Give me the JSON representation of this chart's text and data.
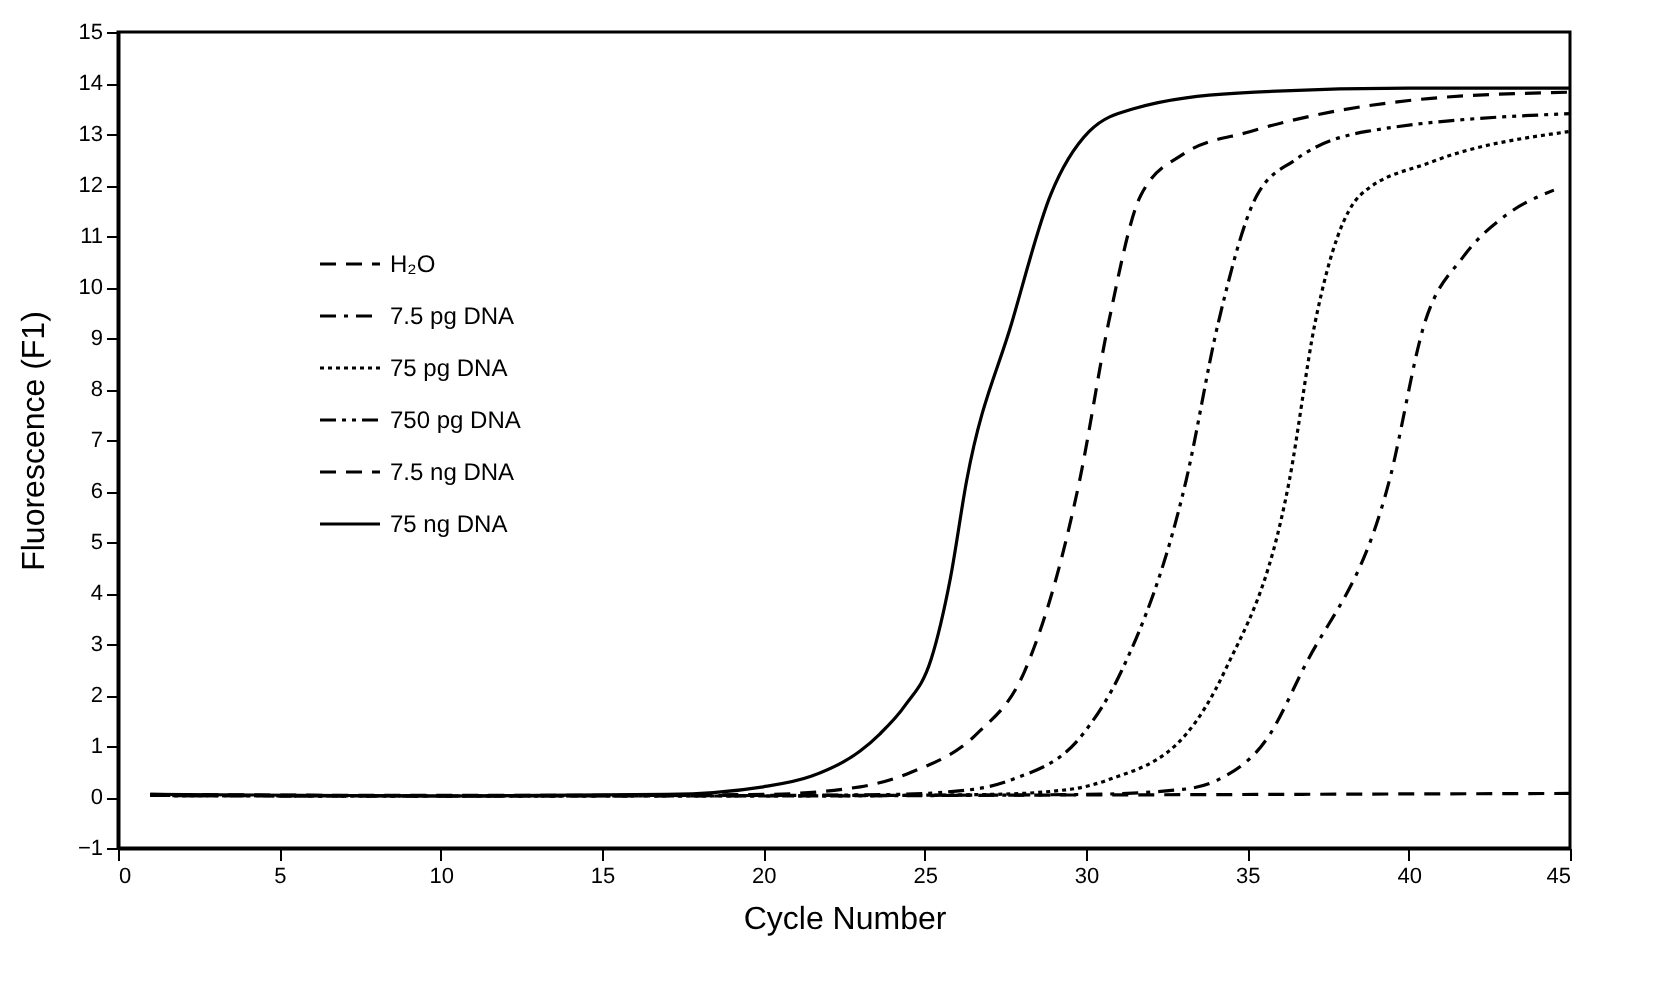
{
  "chart_data": {
    "type": "line",
    "xlabel": "Cycle Number",
    "ylabel": "Fluorescence (F1)",
    "xlim": [
      0,
      45
    ],
    "xticks": [
      0,
      5,
      10,
      15,
      20,
      25,
      30,
      35,
      40,
      45
    ],
    "ylim": [
      -1,
      15
    ],
    "yticks": [
      -1,
      0,
      1,
      2,
      3,
      4,
      5,
      6,
      7,
      8,
      9,
      10,
      11,
      12,
      13,
      14,
      15
    ],
    "legend": "top left",
    "series": [
      {
        "name": "H₂O",
        "color": "#000000",
        "line_style": "dashed",
        "x": [
          1,
          10,
          20,
          30,
          40,
          45
        ],
        "values": [
          0.05,
          0.03,
          0.03,
          0.04,
          0.06,
          0.07
        ]
      },
      {
        "name": "7.5 pg DNA",
        "color": "#000000",
        "line_style": "dashdot",
        "x": [
          1,
          10,
          20,
          30,
          33,
          34.1,
          35.7,
          36.7,
          39.4,
          40.5,
          41.7,
          43,
          44.5
        ],
        "values": [
          0.03,
          0.02,
          0.02,
          0.05,
          0.15,
          0.34,
          1.23,
          2.47,
          6.2,
          9.3,
          10.6,
          11.4,
          11.9
        ]
      },
      {
        "name": "75 pg DNA",
        "color": "#000000",
        "line_style": "dotted",
        "x": [
          1,
          10,
          20,
          27,
          29.5,
          30.7,
          33.1,
          34.3,
          36.3,
          37.1,
          38.5,
          40.7,
          45
        ],
        "values": [
          0.03,
          0.02,
          0.02,
          0.05,
          0.15,
          0.34,
          1.23,
          2.47,
          6.2,
          9.3,
          11.8,
          12.45,
          13.05
        ]
      },
      {
        "name": "750 pg DNA",
        "color": "#000000",
        "line_style": "dashdotdot",
        "x": [
          1,
          10,
          20,
          24,
          26.5,
          27.7,
          29.9,
          31.1,
          33.1,
          34.1,
          35.3,
          36.5,
          38.7,
          45
        ],
        "values": [
          0.03,
          0.02,
          0.03,
          0.05,
          0.15,
          0.34,
          1.23,
          2.47,
          6.2,
          9.3,
          11.8,
          12.5,
          13.05,
          13.4
        ]
      },
      {
        "name": "7.5 ng DNA",
        "color": "#000000",
        "line_style": "dashed",
        "x": [
          1,
          10,
          20,
          23,
          24.6,
          26.6,
          28.1,
          29.8,
          30.7,
          31.7,
          33,
          35.1,
          40.7,
          45
        ],
        "values": [
          0.03,
          0.02,
          0.05,
          0.2,
          0.49,
          1.23,
          2.47,
          6.2,
          9.3,
          11.8,
          12.6,
          13.05,
          13.7,
          13.82
        ]
      },
      {
        "name": "75 ng DNA",
        "color": "#000000",
        "line_style": "solid",
        "x": [
          1,
          10,
          17,
          20,
          21.5,
          23,
          23.6,
          24.4,
          25.2,
          25.8,
          26.3,
          27.7,
          28.9,
          30.1,
          31.5,
          34.7,
          40,
          45
        ],
        "values": [
          0.05,
          0.02,
          0.05,
          0.2,
          0.41,
          0.9,
          1.23,
          1.8,
          2.7,
          4.3,
          6.2,
          9.3,
          11.8,
          13.05,
          13.5,
          13.8,
          13.9,
          13.9
        ]
      }
    ]
  }
}
